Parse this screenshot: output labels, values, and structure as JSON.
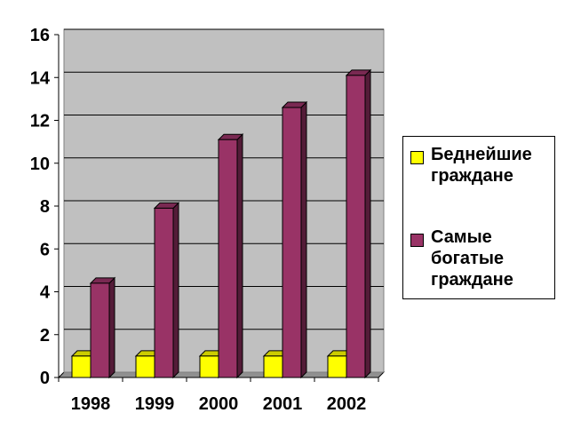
{
  "chart_data": {
    "type": "bar",
    "categories": [
      "1998",
      "1999",
      "2000",
      "2001",
      "2002"
    ],
    "series": [
      {
        "name": "Беднейшие граждане",
        "values": [
          1,
          1,
          1,
          1,
          1
        ],
        "color": "#ffff00"
      },
      {
        "name": "Самые богатые граждане",
        "values": [
          4.4,
          7.9,
          11.1,
          12.6,
          14.1
        ],
        "color": "#993366"
      }
    ],
    "ylim": [
      0,
      16
    ],
    "yticks": [
      "0",
      "2",
      "4",
      "6",
      "8",
      "10",
      "12",
      "14",
      "16"
    ],
    "grid": true,
    "legend_position": "right",
    "wall_color": "#c0c0c0"
  },
  "legend": {
    "items": [
      {
        "label": "Беднейшие граждане",
        "color": "#ffff00"
      },
      {
        "label": "Самые богатые граждане",
        "color": "#993366"
      }
    ]
  }
}
